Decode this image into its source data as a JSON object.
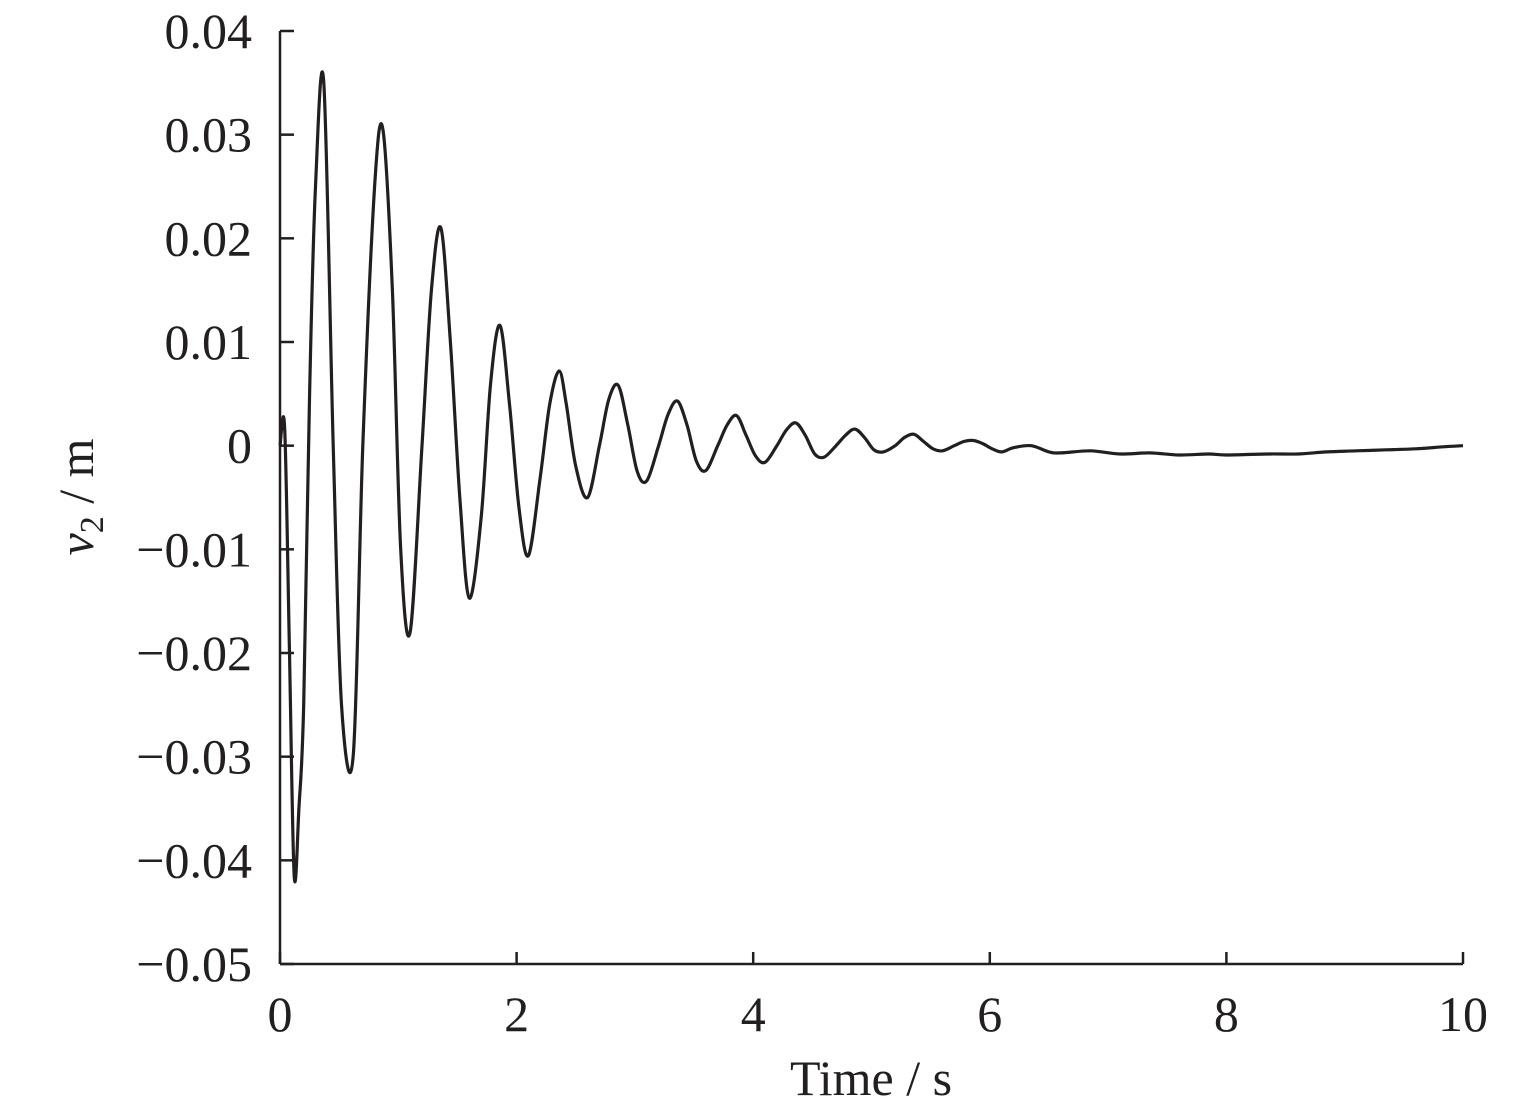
{
  "chart_data": {
    "type": "line",
    "title": "",
    "xlabel": "Time / s",
    "ylabel_var": "v",
    "ylabel_sub": "2",
    "ylabel_unit": " / m",
    "xlim": [
      0,
      10
    ],
    "ylim": [
      -0.05,
      0.04
    ],
    "xticks": [
      0,
      2,
      4,
      6,
      8,
      10
    ],
    "xtick_labels": [
      "0",
      "2",
      "4",
      "6",
      "8",
      "10"
    ],
    "yticks": [
      0.04,
      0.03,
      0.02,
      0.01,
      0,
      -0.01,
      -0.02,
      -0.03,
      -0.04,
      -0.05
    ],
    "ytick_labels": [
      "0.04",
      "0.03",
      "0.02",
      "0.01",
      "0",
      "−0.01",
      "−0.02",
      "−0.03",
      "−0.04",
      "−0.05"
    ],
    "grid": false,
    "legend": "none",
    "line_color": "#231f20",
    "series": [
      {
        "x": [
          0,
          0.04,
          0.08,
          0.12,
          0.16,
          0.2,
          0.25,
          0.3,
          0.37,
          0.45,
          0.52,
          0.62,
          0.7,
          0.8,
          0.87,
          0.95,
          1.02,
          1.1,
          1.2,
          1.28,
          1.36,
          1.44,
          1.52,
          1.6,
          1.7,
          1.78,
          1.86,
          1.94,
          2.02,
          2.1,
          2.2,
          2.28,
          2.36,
          2.42,
          2.5,
          2.6,
          2.7,
          2.78,
          2.86,
          2.94,
          3.02,
          3.1,
          3.2,
          3.28,
          3.36,
          3.44,
          3.52,
          3.6,
          3.7,
          3.78,
          3.86,
          3.94,
          4.02,
          4.1,
          4.2,
          4.28,
          4.36,
          4.44,
          4.52,
          4.6,
          4.7,
          4.78,
          4.86,
          4.94,
          5.02,
          5.1,
          5.2,
          5.28,
          5.36,
          5.44,
          5.52,
          5.6,
          5.7,
          5.78,
          5.86,
          5.94,
          6.02,
          6.1,
          6.2,
          6.35,
          6.5,
          6.6,
          6.85,
          7.1,
          7.35,
          7.6,
          7.85,
          8.0,
          8.35,
          8.6,
          8.85,
          9.1,
          9.35,
          9.6,
          9.85,
          10.0
        ],
        "y": [
          0,
          0.0016,
          -0.02,
          -0.0415,
          -0.035,
          -0.025,
          0.005,
          0.025,
          0.035,
          0.0,
          -0.025,
          -0.0298,
          0.0,
          0.025,
          0.0305,
          0.015,
          -0.01,
          -0.018,
          0.0,
          0.015,
          0.021,
          0.01,
          -0.005,
          -0.0147,
          -0.007,
          0.006,
          0.0116,
          0.004,
          -0.006,
          -0.0106,
          -0.003,
          0.004,
          0.0072,
          0.004,
          -0.002,
          -0.005,
          0.0,
          0.0045,
          0.0058,
          0.002,
          -0.0025,
          -0.0034,
          0.0,
          0.003,
          0.0043,
          0.002,
          -0.0015,
          -0.0024,
          0.0,
          0.002,
          0.0029,
          0.001,
          -0.001,
          -0.0016,
          0.0,
          0.0015,
          0.0022,
          0.001,
          -0.0008,
          -0.0011,
          0.0,
          0.001,
          0.0016,
          0.0008,
          -0.0004,
          -0.0006,
          0.0,
          0.0008,
          0.0011,
          0.0004,
          -0.0003,
          -0.0005,
          0.0,
          0.0004,
          0.0005,
          0.0002,
          -0.0003,
          -0.0006,
          -0.0002,
          0.0,
          -0.0006,
          -0.0007,
          -0.0005,
          -0.0008,
          -0.0007,
          -0.0009,
          -0.0008,
          -0.0009,
          -0.0008,
          -0.0008,
          -0.0006,
          -0.0005,
          -0.0004,
          -0.0003,
          -0.0001,
          0.0
        ]
      }
    ]
  }
}
